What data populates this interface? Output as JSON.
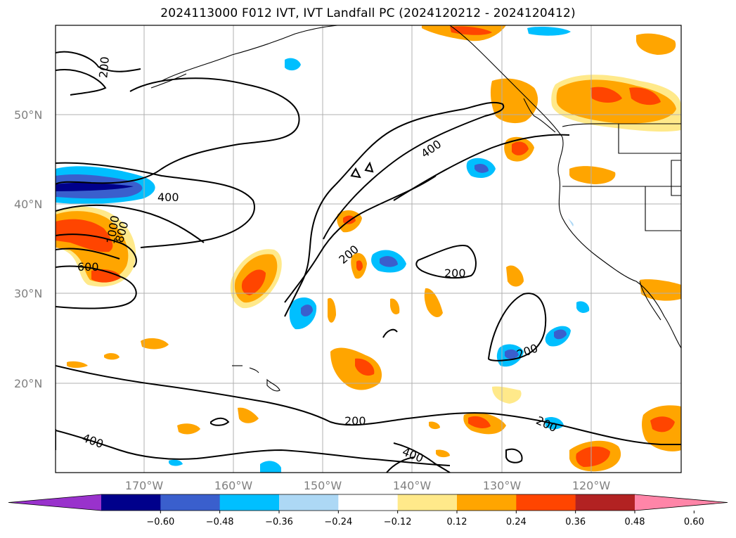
{
  "title": "2024113000 F012 IVT, IVT Landfall PC (2024120212 - 2024120412)",
  "map": {
    "lat_labels": [
      "50°N",
      "40°N",
      "30°N",
      "20°N"
    ],
    "lon_labels": [
      "170°W",
      "160°W",
      "150°W",
      "140°W",
      "130°W",
      "120°W"
    ],
    "contour_labels": [
      "200",
      "400",
      "400",
      "200",
      "200",
      "200",
      "600",
      "800",
      "1000",
      "200",
      "400",
      "400",
      "200"
    ],
    "colors": {
      "land_outline": "#000000",
      "grid": "#b0b0b0",
      "label": "#808080"
    }
  },
  "colorbar": {
    "ticks": [
      "−0.60",
      "−0.48",
      "−0.36",
      "−0.24",
      "−0.12",
      "0.12",
      "0.24",
      "0.36",
      "0.48",
      "0.60"
    ],
    "colors": [
      "#9932cc",
      "#00008b",
      "#3a5fcd",
      "#00bfff",
      "#add8f5",
      "#ffffff",
      "#ffe98a",
      "#ffa500",
      "#ff4500",
      "#b22222",
      "#ff85a8"
    ]
  }
}
